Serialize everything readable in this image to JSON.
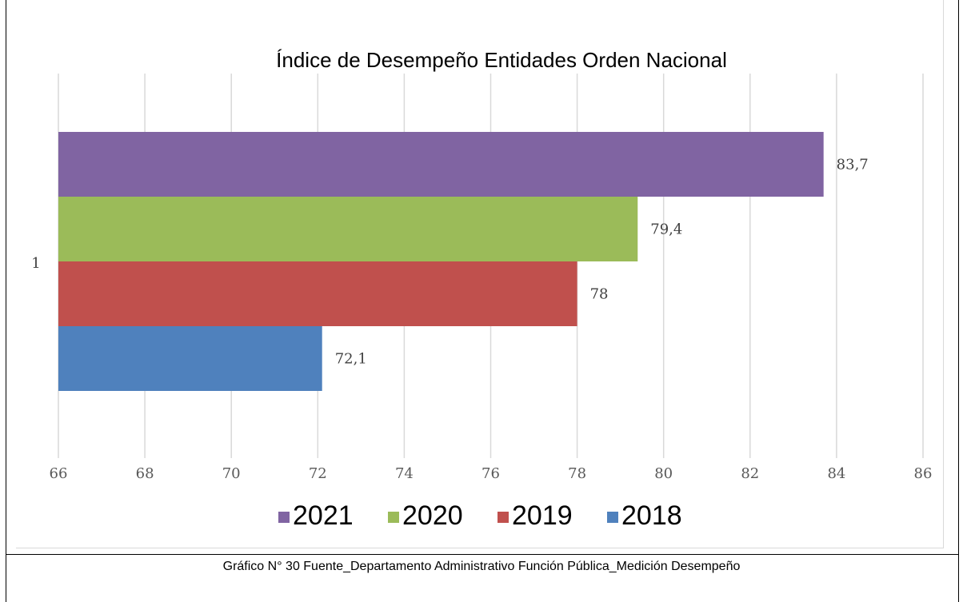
{
  "chart_data": {
    "type": "bar",
    "orientation": "horizontal",
    "title": "Índice de Desempeño Entidades Orden Nacional",
    "categories": [
      "1"
    ],
    "series": [
      {
        "name": "2021",
        "values": [
          83.7
        ],
        "label": "83,7",
        "color": "#8064a2"
      },
      {
        "name": "2020",
        "values": [
          79.4
        ],
        "label": "79,4",
        "color": "#9bbb59"
      },
      {
        "name": "2019",
        "values": [
          78
        ],
        "label": "78",
        "color": "#c0504d"
      },
      {
        "name": "2018",
        "values": [
          72.1
        ],
        "label": "72,1",
        "color": "#4f81bd"
      }
    ],
    "xlim": [
      66,
      86
    ],
    "xticks": [
      "66",
      "68",
      "70",
      "72",
      "74",
      "76",
      "78",
      "80",
      "82",
      "84",
      "86"
    ],
    "grid": true,
    "legend_position": "bottom"
  },
  "caption": "Gráfico N° 30 Fuente_Departamento Administrativo Función Pública_Medición Desempeño"
}
